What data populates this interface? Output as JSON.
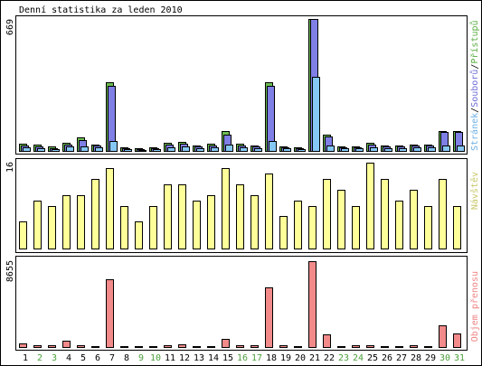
{
  "chart_data": {
    "type": "bar",
    "title": "Denní statistika za leden 2010",
    "categories": [
      "1",
      "2",
      "3",
      "4",
      "5",
      "6",
      "7",
      "8",
      "9",
      "10",
      "11",
      "12",
      "13",
      "14",
      "15",
      "16",
      "17",
      "18",
      "19",
      "20",
      "21",
      "22",
      "23",
      "24",
      "25",
      "26",
      "27",
      "28",
      "29",
      "30",
      "31"
    ],
    "highlighted_categories": [
      2,
      3,
      9,
      10,
      16,
      17,
      23,
      24,
      30,
      31
    ],
    "tick_colors": {
      "weekday": "#000000",
      "weekend": "#4c9f3c"
    },
    "legend": "right",
    "legend_separator": "/",
    "grid": false,
    "panels": [
      {
        "ylim": [
          0,
          669
        ]
      },
      {
        "ylim": [
          0,
          16
        ]
      },
      {
        "ylim": [
          0,
          8655
        ]
      }
    ],
    "series": [
      {
        "name": "Přístupů",
        "panel": 0,
        "color": "#6cbc52",
        "legend_color": "#5cae44",
        "values": [
          37,
          32,
          23,
          41,
          69,
          32,
          346,
          18,
          14,
          18,
          41,
          46,
          28,
          37,
          101,
          37,
          28,
          346,
          23,
          18,
          669,
          83,
          23,
          23,
          41,
          28,
          28,
          32,
          32,
          101,
          101
        ]
      },
      {
        "name": "Souborů",
        "panel": 0,
        "color": "#7f7fe6",
        "legend_color": "#6f6fd8",
        "values": [
          28,
          23,
          14,
          32,
          55,
          28,
          328,
          14,
          9,
          14,
          32,
          37,
          23,
          28,
          83,
          28,
          23,
          328,
          18,
          14,
          669,
          74,
          18,
          18,
          32,
          23,
          23,
          28,
          28,
          97,
          97
        ]
      },
      {
        "name": "Stránek",
        "panel": 0,
        "color": "#86c8f5",
        "legend_color": "#6fb1e6",
        "values": [
          18,
          14,
          9,
          23,
          23,
          18,
          51,
          9,
          5,
          9,
          18,
          23,
          14,
          18,
          32,
          18,
          14,
          51,
          14,
          9,
          378,
          28,
          14,
          14,
          18,
          14,
          14,
          18,
          18,
          28,
          28
        ]
      },
      {
        "name": "Návštěv",
        "panel": 1,
        "color": "#ffff99",
        "legend_color": "#c8c86a",
        "values": [
          5,
          9,
          8,
          10,
          10,
          13,
          15,
          8,
          5,
          8,
          12,
          12,
          9,
          10,
          15,
          12,
          10,
          14,
          6,
          9,
          8,
          13,
          11,
          8,
          16,
          13,
          9,
          11,
          8,
          13,
          8
        ]
      },
      {
        "name": "Objem přenosu",
        "panel": 2,
        "color": "#f28a8a",
        "legend_color": "#f08484",
        "values": [
          360,
          140,
          140,
          640,
          180,
          90,
          6830,
          90,
          90,
          90,
          180,
          270,
          90,
          90,
          820,
          180,
          180,
          6010,
          180,
          90,
          8655,
          1280,
          90,
          180,
          180,
          90,
          90,
          180,
          90,
          2190,
          1370
        ]
      }
    ]
  }
}
